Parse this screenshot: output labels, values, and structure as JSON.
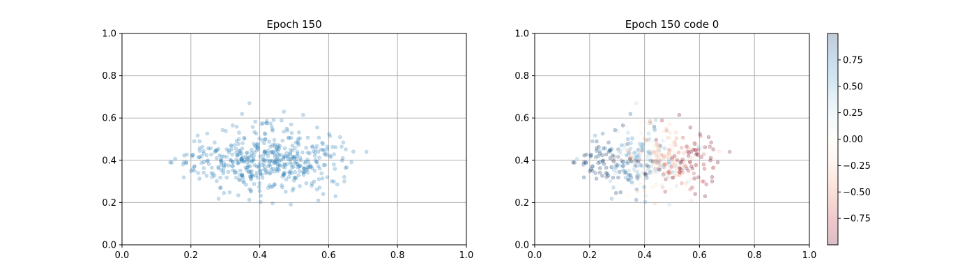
{
  "chart_data": [
    {
      "type": "scatter",
      "title": "Epoch 150",
      "xlabel": "",
      "ylabel": "",
      "xlim": [
        0,
        1
      ],
      "ylim": [
        0,
        1
      ],
      "grid": true,
      "xticks": [
        0.0,
        0.2,
        0.4,
        0.6,
        0.8,
        1.0
      ],
      "yticks": [
        0.0,
        0.2,
        0.4,
        0.6,
        0.8,
        1.0
      ],
      "xtick_labels": [
        "0.0",
        "0.2",
        "0.4",
        "0.6",
        "0.8",
        "1.0"
      ],
      "ytick_labels": [
        "0.0",
        "0.2",
        "0.4",
        "0.6",
        "0.8",
        "1.0"
      ],
      "marker_color": "#1f77b4",
      "alpha": 0.25,
      "n_points": 500,
      "point_cloud": {
        "x_mean": 0.42,
        "x_std": 0.11,
        "x_range": [
          0.14,
          0.71
        ],
        "y_mean": 0.4,
        "y_std": 0.09,
        "y_range": [
          0.19,
          0.67
        ]
      },
      "sample_points": [
        [
          0.14,
          0.39
        ],
        [
          0.21,
          0.49
        ],
        [
          0.37,
          0.67
        ],
        [
          0.47,
          0.63
        ],
        [
          0.49,
          0.19
        ],
        [
          0.57,
          0.21
        ],
        [
          0.71,
          0.44
        ],
        [
          0.62,
          0.23
        ]
      ]
    },
    {
      "type": "scatter",
      "title": "Epoch 150 code 0",
      "xlabel": "",
      "ylabel": "",
      "xlim": [
        0,
        1
      ],
      "ylim": [
        0,
        1
      ],
      "grid": true,
      "xticks": [
        0.0,
        0.2,
        0.4,
        0.6,
        0.8,
        1.0
      ],
      "yticks": [
        0.0,
        0.2,
        0.4,
        0.6,
        0.8,
        1.0
      ],
      "xtick_labels": [
        "0.0",
        "0.2",
        "0.4",
        "0.6",
        "0.8",
        "1.0"
      ],
      "ytick_labels": [
        "0.0",
        "0.2",
        "0.4",
        "0.6",
        "0.8",
        "1.0"
      ],
      "alpha": 0.25,
      "color_dimension": "code 0",
      "color_trend": "code value decreases from about +1 at low x to about -1 at high x",
      "colorbar": {
        "clim": [
          -1,
          1
        ],
        "ticks": [
          -0.75,
          -0.5,
          -0.25,
          0.0,
          0.25,
          0.5,
          0.75
        ],
        "tick_labels": [
          "−0.75",
          "−0.50",
          "−0.25",
          "0.00",
          "0.25",
          "0.50",
          "0.75"
        ],
        "colormap": [
          "#67001f",
          "#b2182b",
          "#d6604d",
          "#f4a582",
          "#fddbc7",
          "#fffbe6",
          "#d1e5f0",
          "#92c5de",
          "#4393c3",
          "#2166ac",
          "#053061"
        ],
        "colormap_stops": [
          -1,
          -0.8,
          -0.6,
          -0.4,
          -0.2,
          0,
          0.2,
          0.4,
          0.6,
          0.8,
          1
        ]
      }
    }
  ]
}
